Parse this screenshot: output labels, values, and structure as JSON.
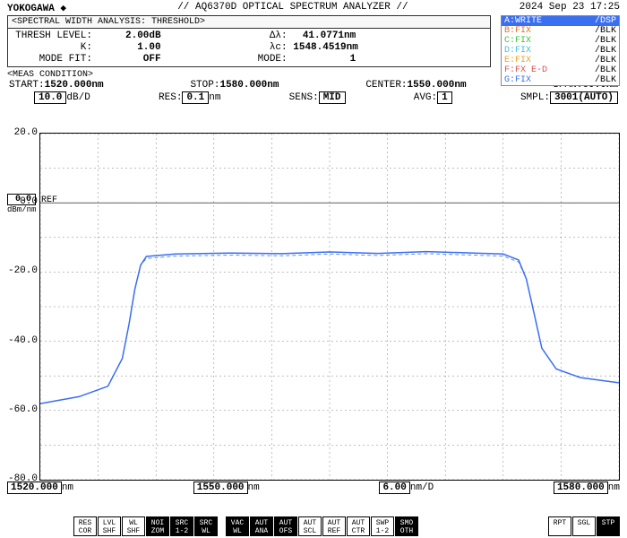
{
  "brand": "YOKOGAWA ◆",
  "model": "// AQ6370D OPTICAL SPECTRUM ANALYZER //",
  "timestamp": "2024 Sep 23 17:25",
  "swa": {
    "header": "<SPECTRAL WIDTH ANALYSIS: THRESHOLD>",
    "thresh_level_k": "THRESH LEVEL:",
    "thresh_level_v": "2.00dB",
    "dlambda_k": "Δλ:",
    "dlambda_v": "41.0771nm",
    "k_k": "K:",
    "k_v": "1.00",
    "lc_k": "λc:",
    "lc_v": "1548.4519nm",
    "modefit_k": "MODE FIT:",
    "modefit_v": "OFF",
    "mode_k": "MODE:",
    "mode_v": "1"
  },
  "traces": [
    {
      "id": "A",
      "label": "A:WRITE",
      "status": "/DSP",
      "color": "#3a6ff2",
      "selected": true
    },
    {
      "id": "B",
      "label": "B:FIX",
      "status": "/BLK",
      "color": "#e07030"
    },
    {
      "id": "C",
      "label": "C:FIX",
      "status": "/BLK",
      "color": "#40c040"
    },
    {
      "id": "D",
      "label": "D:FIX",
      "status": "/BLK",
      "color": "#40c0e0"
    },
    {
      "id": "E",
      "label": "E:FIX",
      "status": "/BLK",
      "color": "#f0a020"
    },
    {
      "id": "F",
      "label": "F:FX E-D",
      "status": "/BLK",
      "color": "#e05050"
    },
    {
      "id": "G",
      "label": "G:FIX",
      "status": "/BLK",
      "color": "#3a6ff2"
    }
  ],
  "meas": {
    "header": "<MEAS CONDITION>",
    "start_k": "START:",
    "start_v": "1520.000nm",
    "stop_k": "STOP:",
    "stop_v": "1580.000nm",
    "center_k": "CENTER:",
    "center_v": "1550.000nm",
    "span_k": "SPAN:",
    "span_v": "60.0nm",
    "dbdiv_v": "10.0",
    "dbdiv_u": "dB/D",
    "res_k": "RES:",
    "res_v": "0.1",
    "res_u": "nm",
    "sens_k": "SENS:",
    "sens_v": "MID",
    "avg_k": "AVG:",
    "avg_v": "1",
    "smpl_k": "SMPL:",
    "smpl_v": "3001(AUTO)"
  },
  "ref": {
    "val": "0.0",
    "lab": "REF",
    "unit": "dBm/nm"
  },
  "chart": {
    "xlim": [
      1520,
      1580
    ],
    "ylim": [
      -80,
      20
    ],
    "xgrid": [
      1520,
      1526,
      1532,
      1538,
      1544,
      1550,
      1556,
      1562,
      1568,
      1574,
      1580
    ],
    "ygrid": [
      20,
      10,
      0,
      -10,
      -20,
      -30,
      -40,
      -50,
      -60,
      -70,
      -80
    ],
    "ylabels": [
      20.0,
      0.0,
      -20.0,
      -40.0,
      -60.0,
      -80.0
    ],
    "grid_color": "#808080",
    "trace_color": "#3a6ff2",
    "trace_width": 1.5,
    "background": "#ffffff",
    "series": [
      {
        "x": 1520,
        "y": -58
      },
      {
        "x": 1524,
        "y": -56
      },
      {
        "x": 1527,
        "y": -53
      },
      {
        "x": 1528.5,
        "y": -45
      },
      {
        "x": 1529.2,
        "y": -35
      },
      {
        "x": 1529.8,
        "y": -25
      },
      {
        "x": 1530.4,
        "y": -18
      },
      {
        "x": 1531,
        "y": -15.5
      },
      {
        "x": 1534,
        "y": -14.8
      },
      {
        "x": 1540,
        "y": -14.5
      },
      {
        "x": 1545,
        "y": -14.7
      },
      {
        "x": 1550,
        "y": -14.2
      },
      {
        "x": 1555,
        "y": -14.6
      },
      {
        "x": 1560,
        "y": -14.1
      },
      {
        "x": 1565,
        "y": -14.5
      },
      {
        "x": 1568,
        "y": -14.8
      },
      {
        "x": 1569.6,
        "y": -16.5
      },
      {
        "x": 1570.4,
        "y": -22
      },
      {
        "x": 1571.2,
        "y": -32
      },
      {
        "x": 1572,
        "y": -42
      },
      {
        "x": 1573.5,
        "y": -48
      },
      {
        "x": 1576,
        "y": -50.5
      },
      {
        "x": 1580,
        "y": -52
      }
    ]
  },
  "bottom": {
    "start_v": "1520.000",
    "start_u": "nm",
    "center_v": "1550.000",
    "center_u": "nm",
    "div_v": "6.00",
    "div_u": "nm/D",
    "stop_v": "1580.000",
    "stop_u": "nm"
  },
  "buttons": [
    {
      "t1": "RES",
      "t2": "COR"
    },
    {
      "t1": "LVL",
      "t2": "SHF"
    },
    {
      "t1": "WL",
      "t2": "SHF"
    },
    {
      "t1": "NOI",
      "t2": "ZOM",
      "inv": true
    },
    {
      "t1": "SRC",
      "t2": "1-2",
      "inv": true
    },
    {
      "t1": "SRC",
      "t2": "WL",
      "inv": true
    },
    {
      "t1": "VAC",
      "t2": "WL",
      "inv": true,
      "gap": true
    },
    {
      "t1": "AUT",
      "t2": "ANA",
      "inv": true
    },
    {
      "t1": "AUT",
      "t2": "OFS",
      "inv": true
    },
    {
      "t1": "AUT",
      "t2": "SCL"
    },
    {
      "t1": "AUT",
      "t2": "REF"
    },
    {
      "t1": "AUT",
      "t2": "CTR"
    },
    {
      "t1": "SWP",
      "t2": "1-2"
    },
    {
      "t1": "SMO",
      "t2": "OTH",
      "inv": true
    },
    {
      "t1": "RPT",
      "t2": "",
      "end": true
    },
    {
      "t1": "SGL",
      "t2": ""
    },
    {
      "t1": "STP",
      "t2": "",
      "inv": true
    }
  ]
}
